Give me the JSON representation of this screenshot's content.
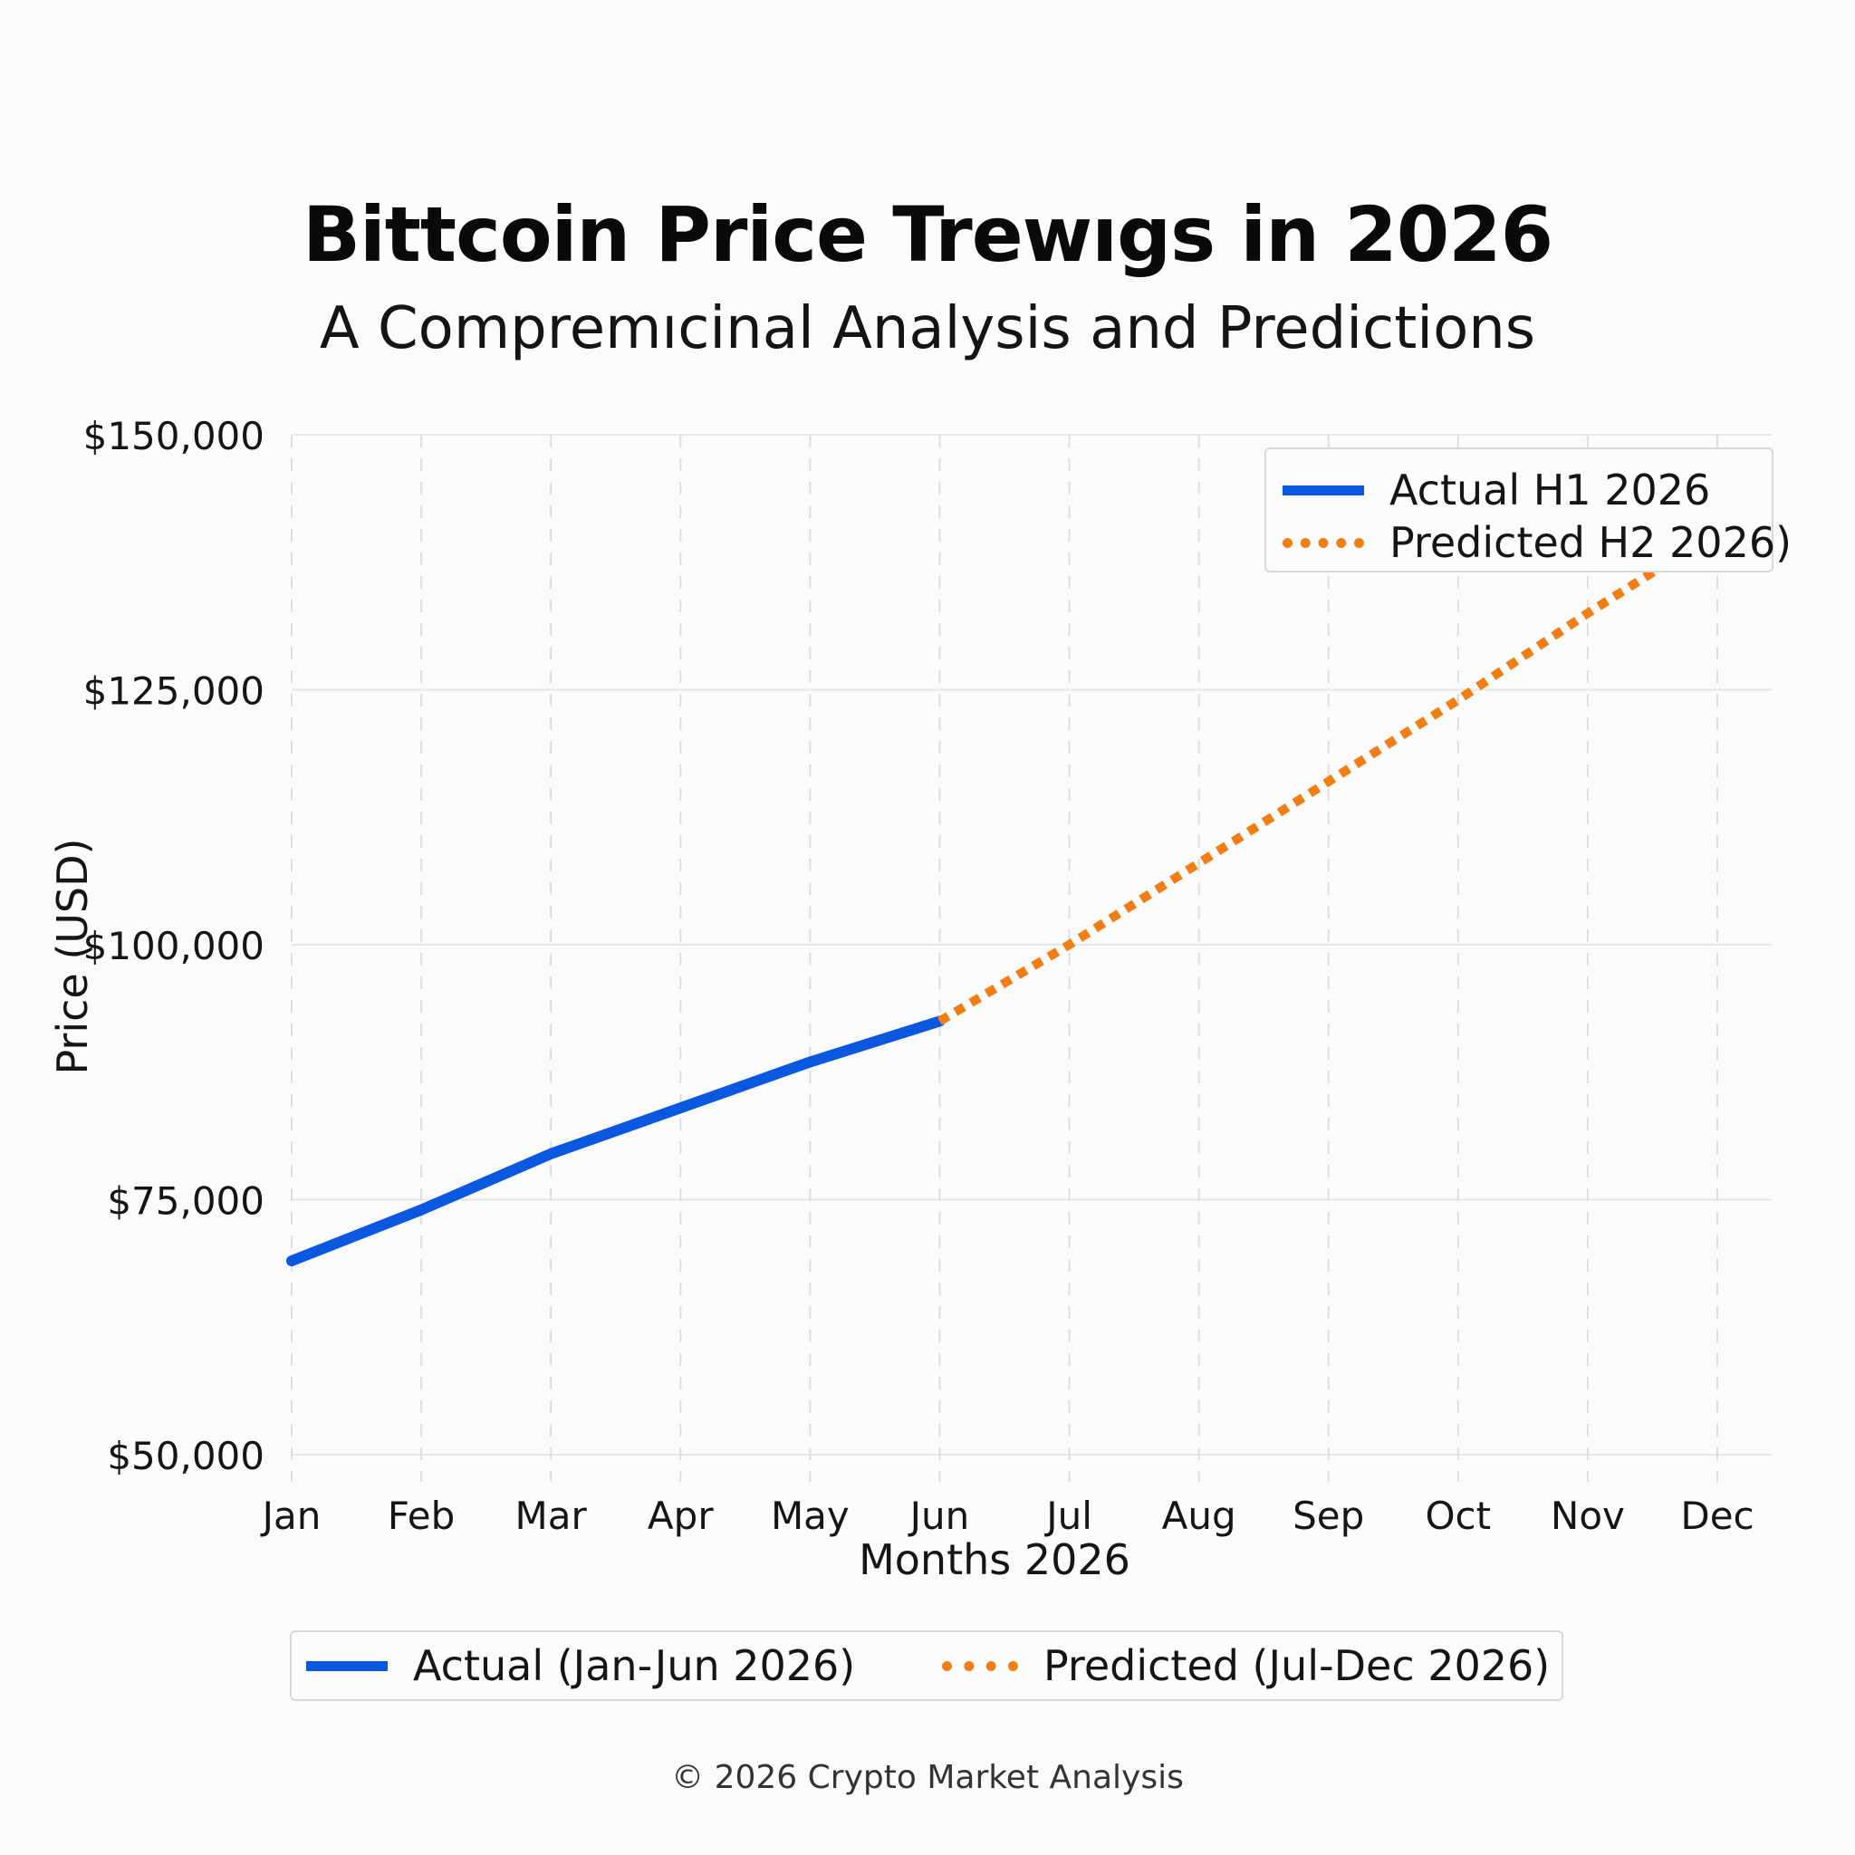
{
  "header": {
    "title": "Bittcoin Price Trewıgs in 2026",
    "subtitle": "A Compremıcinal Analysis and Predictions"
  },
  "chart_data": {
    "type": "line",
    "title": "Bittcoin Price Trewıgs in 2026",
    "subtitle": "A Compremıcinal Analysis and Predictions",
    "xlabel": "Months 2026",
    "ylabel": "Price (USD)",
    "categories": [
      "Jan",
      "Feb",
      "Mar",
      "Apr",
      "May",
      "Jun",
      "Jul",
      "Aug",
      "Sep",
      "Oct",
      "Nov",
      "Dec"
    ],
    "ylim": [
      50000,
      150000
    ],
    "yticks": [
      50000,
      75000,
      100000,
      125000,
      150000
    ],
    "ytick_labels": [
      "$50,000",
      "$75,000",
      "$100,000",
      "$125,000",
      "$150,000"
    ],
    "grid": true,
    "series": [
      {
        "name": "Actual H1 2026",
        "style": "solid",
        "color": "#0a57e0",
        "x": [
          "Jan",
          "Feb",
          "Mar",
          "Apr",
          "May",
          "Jun"
        ],
        "values": [
          69000,
          74000,
          79500,
          84000,
          88500,
          92500
        ]
      },
      {
        "name": "Predicted H2 2026)",
        "style": "dotted",
        "color": "#f07e14",
        "x": [
          "Jun",
          "Jul",
          "Aug",
          "Sep",
          "Oct",
          "Nov",
          "Dec"
        ],
        "values": [
          92500,
          100000,
          108000,
          116000,
          124000,
          132500,
          140500
        ]
      }
    ],
    "legend_top": {
      "placement": "top-right",
      "entries": [
        "Actual H1 2026",
        "Predicted H2 2026)"
      ]
    },
    "legend_bottom": {
      "placement": "bottom-center",
      "entries": [
        "Actual (Jan-Jun 2026)",
        "Predicted (Jul-Dec 2026)"
      ]
    }
  },
  "legends": {
    "top": {
      "actual": "Actual H1 2026",
      "predicted": "Predicted H2 2026)"
    },
    "bottom": {
      "actual": "Actual (Jan-Jun 2026)",
      "predicted": "Predicted (Jul-Dec 2026)"
    }
  },
  "footer": {
    "text": "© 2026 Crypto Market Analysis"
  },
  "colors": {
    "actual": "#0a57e0",
    "predicted": "#f07e14",
    "grid": "#e6e6e6",
    "background": "#fbfbfb"
  }
}
